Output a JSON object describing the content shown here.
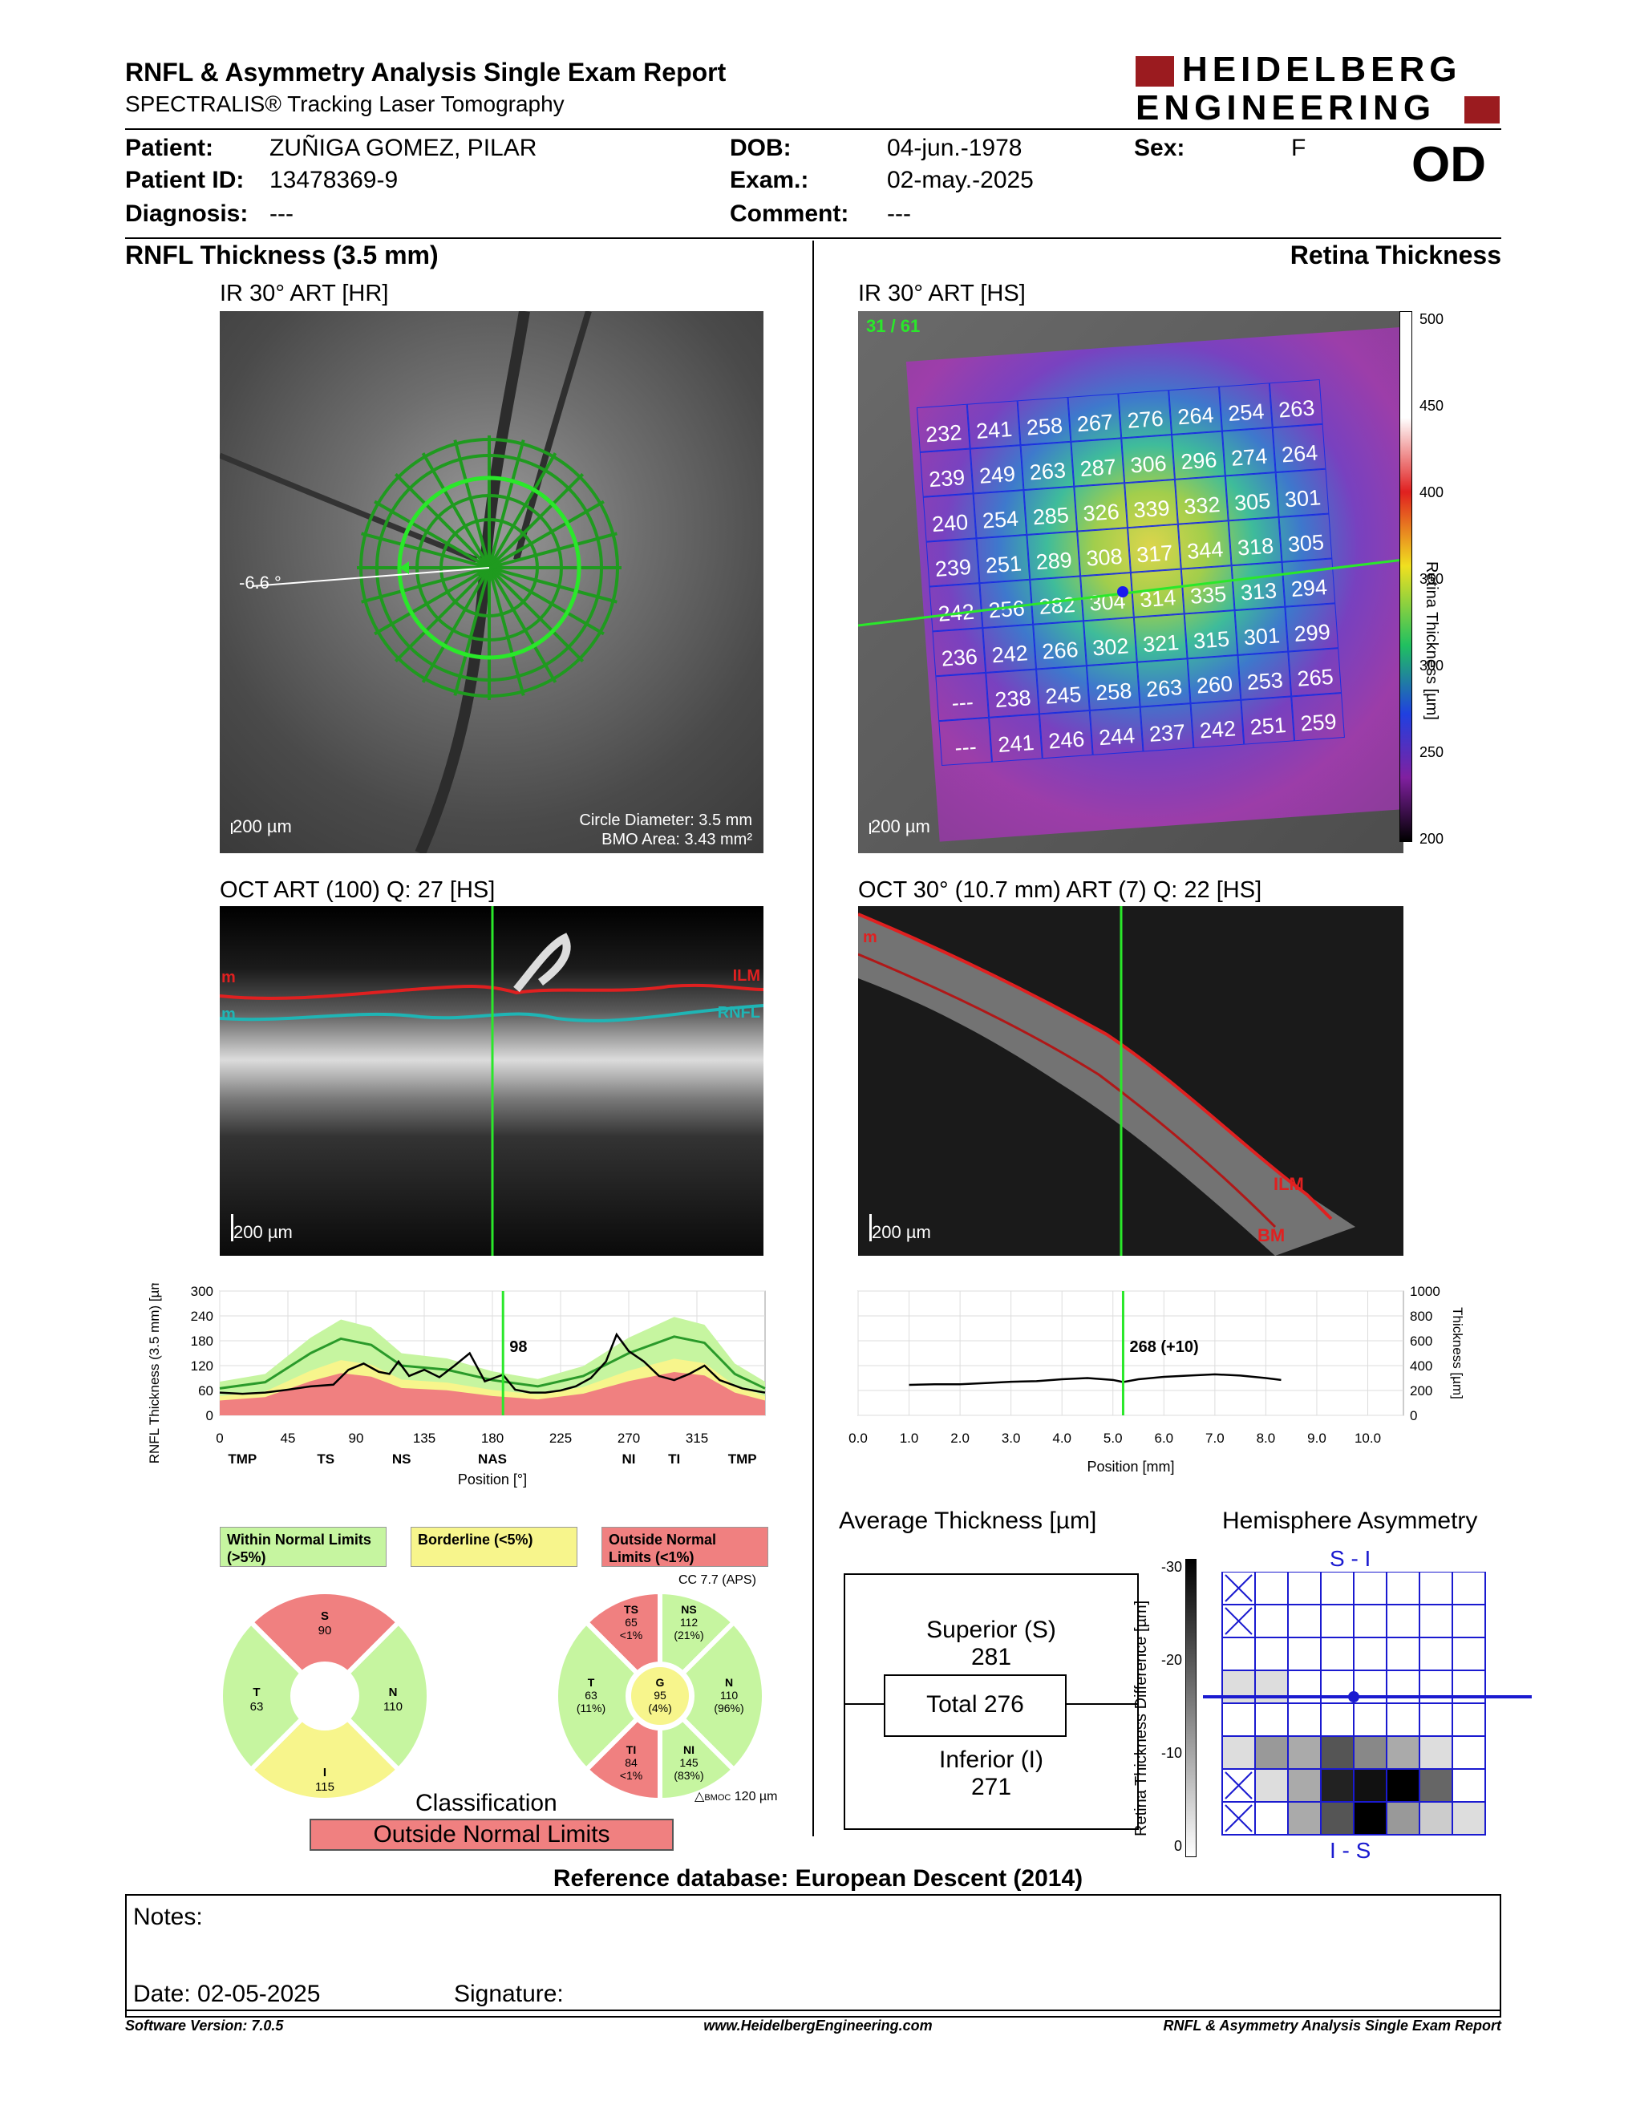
{
  "header": {
    "title": "RNFL & Asymmetry Analysis Single Exam Report",
    "subtitle": "SPECTRALIS® Tracking Laser Tomography",
    "logo_line1": "HEIDELBERG",
    "logo_line2": "ENGINEERING",
    "eye": "OD"
  },
  "patient": {
    "patient_label": "Patient:",
    "patient_value": "ZUÑIGA GOMEZ, PILAR",
    "id_label": "Patient ID:",
    "id_value": "13478369-9",
    "diagnosis_label": "Diagnosis:",
    "diagnosis_value": "---",
    "dob_label": "DOB:",
    "dob_value": "04-jun.-1978",
    "exam_label": "Exam.:",
    "exam_value": "02-may.-2025",
    "comment_label": "Comment:",
    "comment_value": "---",
    "sex_label": "Sex:",
    "sex_value": "F"
  },
  "left": {
    "section_title": "RNFL Thickness (3.5 mm)",
    "ir_title": "IR 30° ART [HR]",
    "ir_angle": "-6.6 °",
    "ir_scale": "200 µm",
    "ir_circle_diameter": "Circle Diameter: 3.5 mm",
    "ir_bmo_area": "BMO Area: 3.43 mm²",
    "oct_title": "OCT ART (100) Q: 27 [HS]",
    "oct_scale": "200 µm",
    "oct_label_ilm": "ILM",
    "oct_label_rnfl": "RNFL",
    "oct_label_m1": "m",
    "oct_label_m2": "m"
  },
  "right": {
    "section_title": "Retina Thickness",
    "ir_title": "IR 30° ART [HS]",
    "ir_counter": "31 / 61",
    "ir_scale": "200 µm",
    "colorbar_label": "Retina Thickness [µm]",
    "colorbar_ticks": [
      "500",
      "450",
      "400",
      "350",
      "300",
      "250",
      "200"
    ],
    "grid_values": [
      [
        "232",
        "241",
        "258",
        "267",
        "276",
        "264",
        "254",
        "263"
      ],
      [
        "239",
        "249",
        "263",
        "287",
        "306",
        "296",
        "274",
        "264"
      ],
      [
        "240",
        "254",
        "285",
        "326",
        "339",
        "332",
        "305",
        "301"
      ],
      [
        "239",
        "251",
        "289",
        "308",
        "317",
        "344",
        "318",
        "305"
      ],
      [
        "242",
        "256",
        "282",
        "304",
        "314",
        "335",
        "313",
        "294"
      ],
      [
        "236",
        "242",
        "266",
        "302",
        "321",
        "315",
        "301",
        "299"
      ],
      [
        "---",
        "238",
        "245",
        "258",
        "263",
        "260",
        "253",
        "265"
      ],
      [
        "---",
        "241",
        "246",
        "244",
        "237",
        "242",
        "251",
        "259"
      ]
    ],
    "oct_title": "OCT 30° (10.7 mm) ART (7) Q: 22 [HS]",
    "oct_scale": "200 µm",
    "oct_label_ilm": "ILM",
    "oct_label_bm": "BM",
    "oct_label_m": "m"
  },
  "legend": {
    "within": "Within Normal Limits (>5%)",
    "borderline": "Borderline (<5%)",
    "outside": "Outside Normal Limits (<1%)",
    "colors": {
      "within": "#c6f5a0",
      "borderline": "#f7f58c",
      "outside": "#f08080"
    }
  },
  "sectors_simple": {
    "S": {
      "label": "S",
      "value": "90"
    },
    "T": {
      "label": "T",
      "value": "63"
    },
    "N": {
      "label": "N",
      "value": "110"
    },
    "I": {
      "label": "I",
      "value": "115"
    }
  },
  "sectors_detail": {
    "note_top": "CC 7.7 (APS)",
    "note_bottom_sub": "BMOC",
    "note_bottom_val": "120 µm",
    "TS": {
      "label": "TS",
      "value": "65",
      "pct": "<1%"
    },
    "NS": {
      "label": "NS",
      "value": "112",
      "pct": "(21%)"
    },
    "T": {
      "label": "T",
      "value": "63",
      "pct": "(11%)"
    },
    "G": {
      "label": "G",
      "value": "95",
      "pct": "(4%)"
    },
    "N": {
      "label": "N",
      "value": "110",
      "pct": "(96%)"
    },
    "TI": {
      "label": "TI",
      "value": "84",
      "pct": "<1%"
    },
    "NI": {
      "label": "NI",
      "value": "145",
      "pct": "(83%)"
    }
  },
  "classification": {
    "label": "Classification",
    "value": "Outside Normal Limits"
  },
  "average_thickness": {
    "title": "Average Thickness [µm]",
    "superior_label": "Superior (S)",
    "superior_value": "281",
    "total": "Total 276",
    "inferior_label": "Inferior (I)",
    "inferior_value": "271"
  },
  "asymmetry": {
    "title": "Hemisphere Asymmetry",
    "top_label": "S - I",
    "bottom_label": "I - S",
    "axis_label": "Retina Thickness Difference [µm]",
    "axis_ticks": [
      "-30",
      "-20",
      "-10",
      "0"
    ]
  },
  "reference": "Reference database: European Descent (2014)",
  "notes": {
    "notes_label": "Notes:",
    "date_label": "Date: 02-05-2025",
    "signature_label": "Signature:"
  },
  "footer": {
    "software": "Software Version: 7.0.5",
    "website": "www.HeidelbergEngineering.com",
    "report": "RNFL & Asymmetry Analysis Single Exam Report"
  },
  "chart_data": [
    {
      "type": "line",
      "ylabel": "RNFL Thickness (3.5 mm) [µm]",
      "xlabel": "Position [°]",
      "ylim": [
        0,
        300
      ],
      "xlim": [
        0,
        360
      ],
      "yticks": [
        "300",
        "240",
        "180",
        "120",
        "60",
        "0"
      ],
      "xticks": [
        "0",
        "45",
        "90",
        "135",
        "180",
        "225",
        "270",
        "315"
      ],
      "sector_labels": [
        "TMP",
        "TS",
        "NS",
        "NAS",
        "NI",
        "TI",
        "TMP"
      ],
      "cursor_label": "98",
      "cursor_x": 187,
      "series": [
        {
          "name": "",
          "x": [
            0,
            15,
            30,
            45,
            60,
            75,
            85,
            95,
            105,
            112,
            118,
            125,
            135,
            145,
            155,
            165,
            175,
            187,
            195,
            205,
            215,
            225,
            235,
            245,
            255,
            262,
            270,
            280,
            290,
            300,
            310,
            320,
            330,
            345,
            355,
            360
          ],
          "values": [
            55,
            52,
            55,
            62,
            70,
            74,
            110,
            125,
            105,
            100,
            130,
            95,
            110,
            92,
            120,
            150,
            82,
            98,
            62,
            55,
            55,
            60,
            70,
            90,
            130,
            195,
            155,
            130,
            95,
            85,
            100,
            120,
            85,
            65,
            58,
            55
          ]
        }
      ],
      "normal_mean": [
        [
          0,
          65
        ],
        [
          30,
          80
        ],
        [
          60,
          150
        ],
        [
          80,
          185
        ],
        [
          100,
          170
        ],
        [
          120,
          120
        ],
        [
          150,
          110
        ],
        [
          180,
          85
        ],
        [
          210,
          70
        ],
        [
          240,
          95
        ],
        [
          270,
          150
        ],
        [
          300,
          190
        ],
        [
          320,
          175
        ],
        [
          340,
          100
        ],
        [
          360,
          65
        ]
      ],
      "grid": true
    },
    {
      "type": "line",
      "ylabel": "Thickness [µm]",
      "xlabel": "Position [mm]",
      "ylim": [
        0,
        1000
      ],
      "xlim": [
        0,
        10.7
      ],
      "yticks": [
        "1000",
        "800",
        "600",
        "400",
        "200",
        "0"
      ],
      "xticks": [
        "0.0",
        "1.0",
        "2.0",
        "3.0",
        "4.0",
        "5.0",
        "6.0",
        "7.0",
        "8.0",
        "9.0",
        "10.0"
      ],
      "cursor_label": "268 (+10)",
      "cursor_x": 5.2,
      "series": [
        {
          "name": "",
          "x": [
            1.0,
            1.5,
            2.0,
            2.5,
            3.0,
            3.5,
            4.0,
            4.5,
            5.0,
            5.2,
            5.5,
            6.0,
            6.5,
            7.0,
            7.5,
            8.0,
            8.3
          ],
          "values": [
            245,
            250,
            250,
            260,
            270,
            275,
            290,
            300,
            285,
            268,
            290,
            310,
            320,
            330,
            320,
            300,
            285
          ]
        }
      ],
      "grid": true
    }
  ]
}
